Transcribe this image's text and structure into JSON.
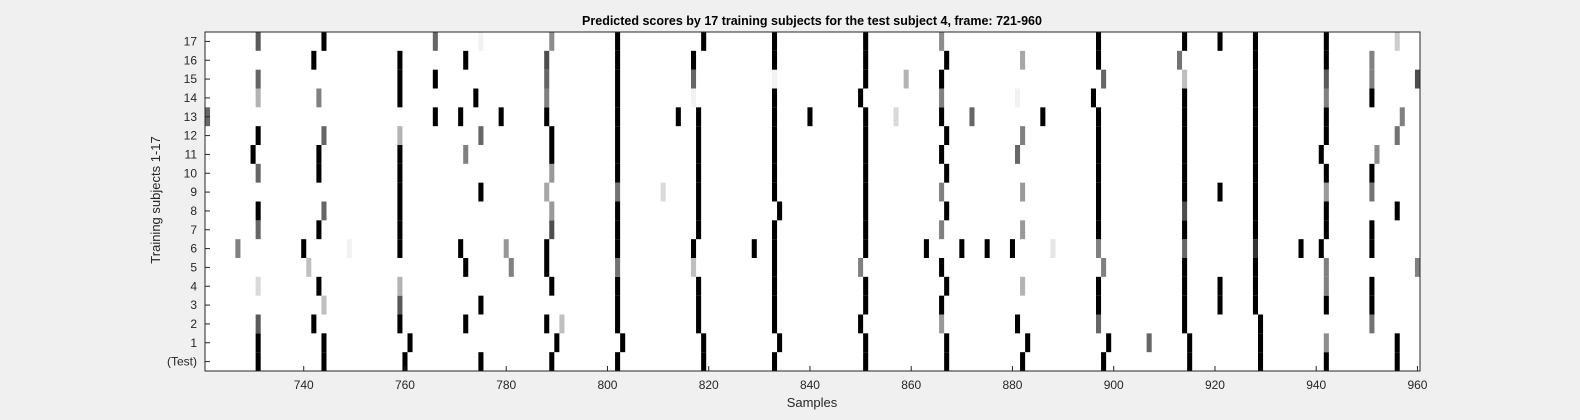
{
  "chart_data": {
    "type": "heatmap",
    "title": "Predicted scores by 17 training subjects for the test subject 4, frame: 721-960",
    "xlabel": "Samples",
    "ylabel": "Training subjects 1-17",
    "xlim": [
      721,
      960
    ],
    "xticks": [
      740,
      760,
      780,
      800,
      820,
      840,
      860,
      880,
      900,
      920,
      940,
      960
    ],
    "rows": [
      "(Test)",
      "1",
      "2",
      "3",
      "4",
      "5",
      "6",
      "7",
      "8",
      "9",
      "10",
      "11",
      "12",
      "13",
      "14",
      "15",
      "16",
      "17"
    ],
    "colormap": "gray (0 = black, 1 = white)",
    "background_value": 1,
    "cells": [
      {
        "row": "(Test)",
        "points": [
          [
            731,
            0
          ],
          [
            744,
            0
          ],
          [
            760,
            0
          ],
          [
            775,
            0
          ],
          [
            789,
            0
          ],
          [
            802,
            0
          ],
          [
            819,
            0
          ],
          [
            833,
            0
          ],
          [
            851,
            0
          ],
          [
            867,
            0
          ],
          [
            882,
            0
          ],
          [
            898,
            0
          ],
          [
            915,
            0
          ],
          [
            929,
            0
          ],
          [
            942,
            0
          ],
          [
            956,
            0
          ]
        ]
      },
      {
        "row": "1",
        "points": [
          [
            731,
            0
          ],
          [
            744,
            0
          ],
          [
            761,
            0
          ],
          [
            790,
            0
          ],
          [
            803,
            0
          ],
          [
            819,
            0
          ],
          [
            834,
            0
          ],
          [
            851,
            0
          ],
          [
            867,
            0
          ],
          [
            883,
            0
          ],
          [
            899,
            0
          ],
          [
            907,
            0.4
          ],
          [
            915,
            0
          ],
          [
            929,
            0
          ],
          [
            942,
            0.55
          ],
          [
            956,
            0
          ]
        ]
      },
      {
        "row": "2",
        "points": [
          [
            731,
            0.35
          ],
          [
            742,
            0
          ],
          [
            759,
            0
          ],
          [
            772,
            0
          ],
          [
            788,
            0
          ],
          [
            791,
            0.75
          ],
          [
            802,
            0
          ],
          [
            818,
            0
          ],
          [
            833,
            0
          ],
          [
            850,
            0
          ],
          [
            866,
            0.6
          ],
          [
            881,
            0
          ],
          [
            897,
            0.4
          ],
          [
            914,
            0
          ],
          [
            929,
            0
          ],
          [
            951,
            0.45
          ]
        ]
      },
      {
        "row": "3",
        "points": [
          [
            744,
            0.75
          ],
          [
            759,
            0.35
          ],
          [
            775,
            0
          ],
          [
            802,
            0
          ],
          [
            818,
            0
          ],
          [
            833,
            0
          ],
          [
            851,
            0
          ],
          [
            866,
            0
          ],
          [
            897,
            0
          ],
          [
            914,
            0
          ],
          [
            921,
            0
          ],
          [
            928,
            0
          ],
          [
            942,
            0
          ],
          [
            951,
            0
          ]
        ]
      },
      {
        "row": "4",
        "points": [
          [
            731,
            0.85
          ],
          [
            743,
            0
          ],
          [
            759,
            0.7
          ],
          [
            789,
            0
          ],
          [
            802,
            0
          ],
          [
            818,
            0
          ],
          [
            833,
            0
          ],
          [
            851,
            0
          ],
          [
            867,
            0
          ],
          [
            882,
            0.7
          ],
          [
            897,
            0
          ],
          [
            914,
            0
          ],
          [
            921,
            0
          ],
          [
            928,
            0
          ],
          [
            942,
            0.5
          ],
          [
            951,
            0
          ]
        ]
      },
      {
        "row": "5",
        "points": [
          [
            741,
            0.75
          ],
          [
            772,
            0
          ],
          [
            781,
            0.5
          ],
          [
            788,
            0
          ],
          [
            802,
            0.45
          ],
          [
            817,
            0.75
          ],
          [
            833,
            0
          ],
          [
            850,
            0.5
          ],
          [
            866,
            0
          ],
          [
            898,
            0.5
          ],
          [
            914,
            0
          ],
          [
            928,
            0
          ],
          [
            942,
            0.5
          ],
          [
            960,
            0.5
          ]
        ]
      },
      {
        "row": "6",
        "points": [
          [
            727,
            0.5
          ],
          [
            740,
            0
          ],
          [
            749,
            0.95
          ],
          [
            759,
            0
          ],
          [
            771,
            0
          ],
          [
            780,
            0.6
          ],
          [
            788,
            0
          ],
          [
            802,
            0
          ],
          [
            817,
            0
          ],
          [
            829,
            0
          ],
          [
            833,
            0
          ],
          [
            851,
            0
          ],
          [
            863,
            0
          ],
          [
            870,
            0
          ],
          [
            875,
            0
          ],
          [
            880,
            0
          ],
          [
            888,
            0.9
          ],
          [
            897,
            0.5
          ],
          [
            914,
            0.4
          ],
          [
            928,
            0.2
          ],
          [
            937,
            0
          ],
          [
            941,
            0
          ],
          [
            951,
            0
          ]
        ]
      },
      {
        "row": "7",
        "points": [
          [
            731,
            0.4
          ],
          [
            743,
            0
          ],
          [
            759,
            0
          ],
          [
            789,
            0.3
          ],
          [
            802,
            0
          ],
          [
            818,
            0
          ],
          [
            833,
            0
          ],
          [
            851,
            0
          ],
          [
            866,
            0.5
          ],
          [
            882,
            0.6
          ],
          [
            897,
            0
          ],
          [
            914,
            0
          ],
          [
            928,
            0
          ],
          [
            942,
            0
          ],
          [
            951,
            0
          ]
        ]
      },
      {
        "row": "8",
        "points": [
          [
            731,
            0
          ],
          [
            744,
            0.4
          ],
          [
            759,
            0
          ],
          [
            789,
            0.6
          ],
          [
            802,
            0
          ],
          [
            818,
            0
          ],
          [
            834,
            0
          ],
          [
            851,
            0
          ],
          [
            867,
            0
          ],
          [
            897,
            0
          ],
          [
            914,
            0.3
          ],
          [
            928,
            0
          ],
          [
            942,
            0
          ],
          [
            956,
            0
          ]
        ]
      },
      {
        "row": "9",
        "points": [
          [
            759,
            0
          ],
          [
            775,
            0
          ],
          [
            788,
            0.65
          ],
          [
            802,
            0.45
          ],
          [
            811,
            0.85
          ],
          [
            818,
            0
          ],
          [
            833,
            0
          ],
          [
            851,
            0
          ],
          [
            866,
            0.5
          ],
          [
            882,
            0.6
          ],
          [
            897,
            0
          ],
          [
            914,
            0
          ],
          [
            921,
            0
          ],
          [
            928,
            0
          ],
          [
            942,
            0.6
          ],
          [
            951,
            0.45
          ]
        ]
      },
      {
        "row": "10",
        "points": [
          [
            731,
            0.4
          ],
          [
            743,
            0
          ],
          [
            759,
            0
          ],
          [
            789,
            0.6
          ],
          [
            802,
            0
          ],
          [
            818,
            0
          ],
          [
            833,
            0
          ],
          [
            851,
            0
          ],
          [
            867,
            0
          ],
          [
            897,
            0
          ],
          [
            914,
            0
          ],
          [
            928,
            0
          ],
          [
            942,
            0
          ],
          [
            951,
            0
          ]
        ]
      },
      {
        "row": "11",
        "points": [
          [
            730,
            0
          ],
          [
            743,
            0
          ],
          [
            759,
            0
          ],
          [
            772,
            0.5
          ],
          [
            789,
            0
          ],
          [
            802,
            0
          ],
          [
            818,
            0
          ],
          [
            833,
            0
          ],
          [
            851,
            0
          ],
          [
            866,
            0
          ],
          [
            881,
            0.4
          ],
          [
            897,
            0
          ],
          [
            914,
            0
          ],
          [
            928,
            0
          ],
          [
            941,
            0
          ],
          [
            952,
            0.55
          ]
        ]
      },
      {
        "row": "12",
        "points": [
          [
            731,
            0
          ],
          [
            744,
            0.4
          ],
          [
            759,
            0.7
          ],
          [
            775,
            0.4
          ],
          [
            789,
            0
          ],
          [
            802,
            0
          ],
          [
            818,
            0
          ],
          [
            833,
            0
          ],
          [
            851,
            0
          ],
          [
            867,
            0
          ],
          [
            882,
            0.5
          ],
          [
            897,
            0
          ],
          [
            914,
            0
          ],
          [
            928,
            0
          ],
          [
            942,
            0
          ],
          [
            956,
            0.45
          ]
        ]
      },
      {
        "row": "13",
        "points": [
          [
            721,
            0.4
          ],
          [
            766,
            0
          ],
          [
            771,
            0
          ],
          [
            779,
            0
          ],
          [
            788,
            0
          ],
          [
            802,
            0
          ],
          [
            814,
            0
          ],
          [
            818,
            0
          ],
          [
            833,
            0
          ],
          [
            840,
            0
          ],
          [
            851,
            0
          ],
          [
            857,
            0.85
          ],
          [
            866,
            0
          ],
          [
            872,
            0.4
          ],
          [
            886,
            0
          ],
          [
            897,
            0
          ],
          [
            914,
            0
          ],
          [
            928,
            0
          ],
          [
            942,
            0
          ],
          [
            957,
            0.5
          ]
        ]
      },
      {
        "row": "14",
        "points": [
          [
            731,
            0.7
          ],
          [
            743,
            0.5
          ],
          [
            759,
            0
          ],
          [
            774,
            0
          ],
          [
            788,
            0.5
          ],
          [
            802,
            0
          ],
          [
            817,
            0.95
          ],
          [
            833,
            0
          ],
          [
            850,
            0
          ],
          [
            866,
            0.5
          ],
          [
            881,
            0.95
          ],
          [
            896,
            0
          ],
          [
            914,
            0
          ],
          [
            928,
            0
          ],
          [
            942,
            0.5
          ],
          [
            951,
            0
          ]
        ]
      },
      {
        "row": "15",
        "points": [
          [
            731,
            0.4
          ],
          [
            759,
            0
          ],
          [
            766,
            0
          ],
          [
            788,
            0.4
          ],
          [
            802,
            0
          ],
          [
            817,
            0.4
          ],
          [
            833,
            0.95
          ],
          [
            851,
            0
          ],
          [
            859,
            0.7
          ],
          [
            866,
            0
          ],
          [
            898,
            0.4
          ],
          [
            914,
            0.75
          ],
          [
            928,
            0
          ],
          [
            942,
            0.35
          ],
          [
            951,
            0.5
          ],
          [
            960,
            0.3
          ]
        ]
      },
      {
        "row": "16",
        "points": [
          [
            742,
            0
          ],
          [
            759,
            0
          ],
          [
            772,
            0
          ],
          [
            788,
            0.3
          ],
          [
            802,
            0
          ],
          [
            817,
            0
          ],
          [
            833,
            0
          ],
          [
            851,
            0
          ],
          [
            867,
            0
          ],
          [
            882,
            0.65
          ],
          [
            897,
            0
          ],
          [
            913,
            0.45
          ],
          [
            928,
            0
          ],
          [
            942,
            0
          ],
          [
            951,
            0.5
          ]
        ]
      },
      {
        "row": "17",
        "points": [
          [
            731,
            0.35
          ],
          [
            744,
            0
          ],
          [
            766,
            0.4
          ],
          [
            775,
            0.95
          ],
          [
            789,
            0.55
          ],
          [
            802,
            0
          ],
          [
            819,
            0
          ],
          [
            833,
            0
          ],
          [
            851,
            0
          ],
          [
            866,
            0.55
          ],
          [
            897,
            0
          ],
          [
            914,
            0
          ],
          [
            921,
            0
          ],
          [
            928,
            0
          ],
          [
            942,
            0
          ],
          [
            956,
            0.8
          ]
        ]
      }
    ]
  }
}
